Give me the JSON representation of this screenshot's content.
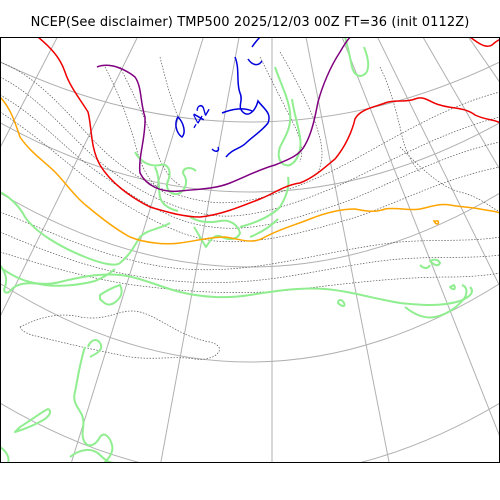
{
  "title": "NCEP(See disclaimer) TMP500 2025/12/03 00Z FT=36 (init 0112Z)",
  "contour_label": "-42",
  "colors": {
    "grid": "#b0b0b0",
    "coast": "#90ee90",
    "dotted": "#555555",
    "blue": "#0000dd",
    "purple": "#800080",
    "red": "#ee0000",
    "orange": "#ffa500",
    "frame": "#000000"
  }
}
